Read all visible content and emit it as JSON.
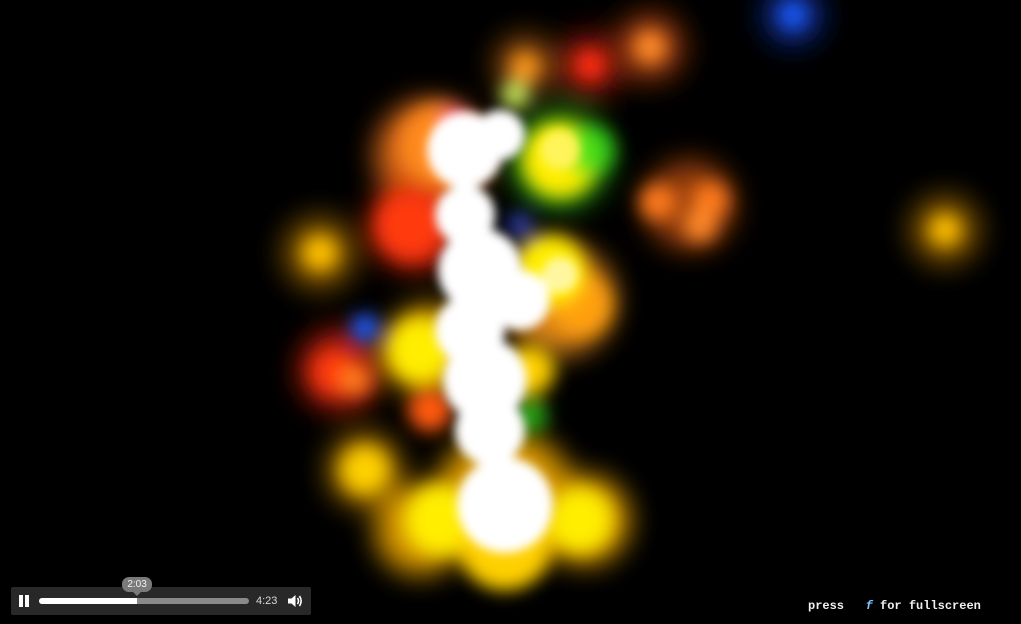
{
  "player": {
    "current_time": "2:03",
    "duration": "4:23",
    "progress": 0.467,
    "state": "playing",
    "play_icon": "pause-icon",
    "volume_icon": "speaker-icon"
  },
  "hint": {
    "prefix": "press",
    "key": "f",
    "suffix": "for fullscreen"
  },
  "visualization": {
    "background": "#000000",
    "palette": [
      "#ffffff",
      "#ffee00",
      "#ffb300",
      "#ff7a1a",
      "#ff2d0a",
      "#35e01a",
      "#1a5cff",
      "#ff40c0"
    ]
  }
}
